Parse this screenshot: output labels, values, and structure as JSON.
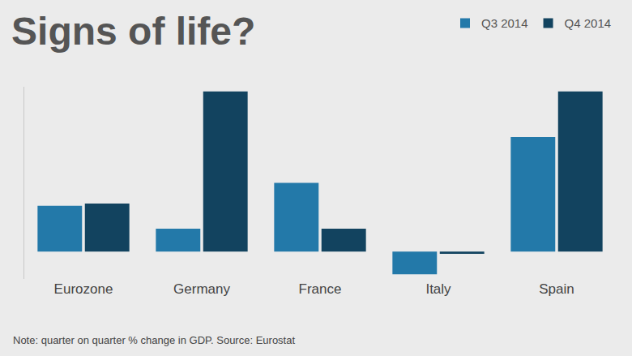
{
  "chart_data": {
    "type": "bar",
    "title": "Signs of life?",
    "note": "Note: quarter on quarter % change in GDP. Source: Eurostat",
    "categories": [
      "Eurozone",
      "Germany",
      "France",
      "Italy",
      "Spain"
    ],
    "series": [
      {
        "name": "Q3 2014",
        "color": "#2379a9",
        "values": [
          0.2,
          0.1,
          0.3,
          -0.1,
          0.5
        ]
      },
      {
        "name": "Q4 2014",
        "color": "#12435f",
        "values": [
          0.21,
          0.7,
          0.1,
          -0.01,
          0.7
        ]
      }
    ],
    "ylim": [
      -0.12,
      0.72
    ],
    "yticks": [],
    "grid": false,
    "tick_labels": "x",
    "legend": "top right"
  }
}
